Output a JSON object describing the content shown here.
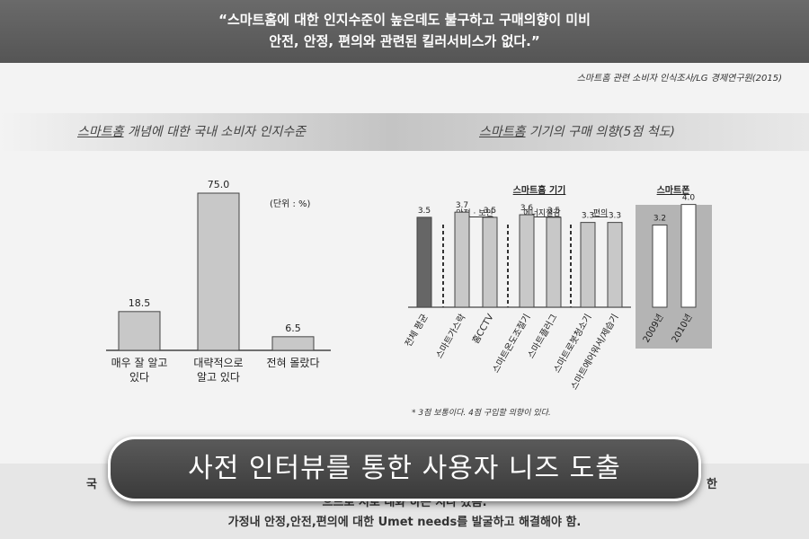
{
  "header": {
    "line1": "“스마트홈에 대한 인지수준이 높은데도 불구하고 구매의향이 미비",
    "line2": "안전, 안정, 편의와 관련된 킬러서비스가 없다.”"
  },
  "source": "스마트홈 관련 소비자 인식조사/LG 경제연구원(2015)",
  "left_title_underlined": "스마트홈",
  "left_title_rest": " 개념에 대한 국내 소비자 인지수준",
  "right_title_underlined": "스마트홈",
  "right_title_rest": " 기기의 구매 의향(5점 척도)",
  "chart_data": [
    {
      "type": "bar",
      "categories": [
        [
          "매우 잘 알고",
          "있다"
        ],
        [
          "대략적으로",
          "알고 있다"
        ],
        [
          "전혀 몰랐다"
        ]
      ],
      "values": [
        18.5,
        75.0,
        6.5
      ],
      "value_labels": [
        "18.5",
        "75.0",
        "6.5"
      ],
      "unit_note": "(단위 : %)",
      "ylim": [
        0,
        80
      ]
    },
    {
      "type": "bar",
      "categories": [
        "전체 평균",
        "스마트가스락",
        "홈CCTV",
        "스마트온도조절기",
        "스마트플러그",
        "스마트로봇청소기",
        "스마트에어워셔/제습기",
        "2009년",
        "2010년"
      ],
      "values": [
        3.5,
        3.7,
        3.5,
        3.6,
        3.5,
        3.3,
        3.3,
        3.2,
        4.0
      ],
      "value_labels": [
        "3.5",
        "3.7",
        "3.5",
        "3.6",
        "3.5",
        "3.3",
        "3.3",
        "3.2",
        "4.0"
      ],
      "group_titles": [
        "스마트홈 기기",
        "스마트폰"
      ],
      "subgroups": [
        "안전 · 보안",
        "에너지절감",
        "편의"
      ],
      "footnote": "* 3점 보통이다. 4점 구입할 의향이 있다.",
      "colors": {
        "average": "#666666",
        "device": "#c8c8c8",
        "phone": "#ffffff"
      }
    }
  ],
  "footer": {
    "side_left": "국",
    "side_right": "한",
    "line1": "으므로 서로 대화 하는 지나 갔음.",
    "line2": "가정내 안정,안전,편의에 대한 Umet needs를 발굴하고 해결해야 함."
  },
  "banner": "사전 인터뷰를 통한 사용자 니즈 도출"
}
